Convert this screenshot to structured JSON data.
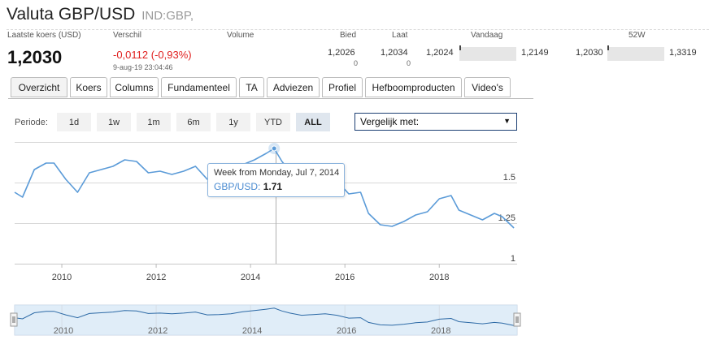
{
  "header": {
    "title": "Valuta GBP/USD",
    "symbol": "IND:GBP,"
  },
  "quote": {
    "labels": {
      "last": "Laatste koers (USD)",
      "change": "Verschil",
      "volume": "Volume",
      "bid": "Bied",
      "ask": "Laat",
      "today": "Vandaag",
      "week52": "52W"
    },
    "last": "1,2030",
    "change": "-0,0112 (-0,93%)",
    "timestamp": "9-aug-19 23:04:46",
    "bid": "1,2026",
    "bid_size": "0",
    "ask": "1,2034",
    "ask_size": "0",
    "today_low": "1,2024",
    "today_high": "1,2149",
    "week52_low": "1,2030",
    "week52_high": "1,3319"
  },
  "tabs": [
    {
      "label": "Overzicht",
      "active": true
    },
    {
      "label": "Koers"
    },
    {
      "label": "Columns"
    },
    {
      "label": "Fundamenteel"
    },
    {
      "label": "TA"
    },
    {
      "label": "Adviezen"
    },
    {
      "label": "Profiel"
    },
    {
      "label": "Hefboomproducten"
    },
    {
      "label": "Video's"
    }
  ],
  "period": {
    "label": "Periode:",
    "options": [
      "1d",
      "1w",
      "1m",
      "6m",
      "1y",
      "YTD",
      "ALL"
    ],
    "selected": "ALL"
  },
  "compare": {
    "label": "Vergelijk met:"
  },
  "tooltip": {
    "title": "Week from Monday, Jul 7, 2014",
    "series": "GBP/USD",
    "value": "1.71"
  },
  "colors": {
    "line": "#5b9bd8",
    "negative": "#e0201f",
    "navigator_fill": "#d7e7f7"
  },
  "chart_data": {
    "type": "line",
    "x_ticks": [
      "2010",
      "2012",
      "2014",
      "2016",
      "2018"
    ],
    "y_ticks": [
      "1.5",
      "1.25",
      "1"
    ],
    "ylim": [
      1,
      1.75
    ],
    "grid": true,
    "series": [
      {
        "name": "GBP/USD",
        "x": [
          "2009-01",
          "2009-03",
          "2009-06",
          "2009-09",
          "2009-11",
          "2010-02",
          "2010-05",
          "2010-08",
          "2010-11",
          "2011-02",
          "2011-05",
          "2011-08",
          "2011-11",
          "2012-02",
          "2012-05",
          "2012-08",
          "2012-11",
          "2013-02",
          "2013-05",
          "2013-08",
          "2013-11",
          "2014-02",
          "2014-05",
          "2014-07",
          "2014-09",
          "2014-11",
          "2015-02",
          "2015-05",
          "2015-08",
          "2015-11",
          "2016-02",
          "2016-05",
          "2016-07",
          "2016-10",
          "2017-01",
          "2017-04",
          "2017-07",
          "2017-10",
          "2018-01",
          "2018-04",
          "2018-06",
          "2018-09",
          "2018-12",
          "2019-03",
          "2019-05",
          "2019-08"
        ],
        "values": [
          1.44,
          1.41,
          1.58,
          1.62,
          1.62,
          1.52,
          1.44,
          1.56,
          1.58,
          1.6,
          1.64,
          1.63,
          1.56,
          1.57,
          1.55,
          1.57,
          1.6,
          1.52,
          1.53,
          1.55,
          1.61,
          1.64,
          1.68,
          1.71,
          1.63,
          1.57,
          1.51,
          1.53,
          1.55,
          1.51,
          1.43,
          1.44,
          1.31,
          1.24,
          1.23,
          1.26,
          1.3,
          1.32,
          1.4,
          1.42,
          1.33,
          1.3,
          1.27,
          1.31,
          1.29,
          1.22
        ]
      }
    ]
  }
}
